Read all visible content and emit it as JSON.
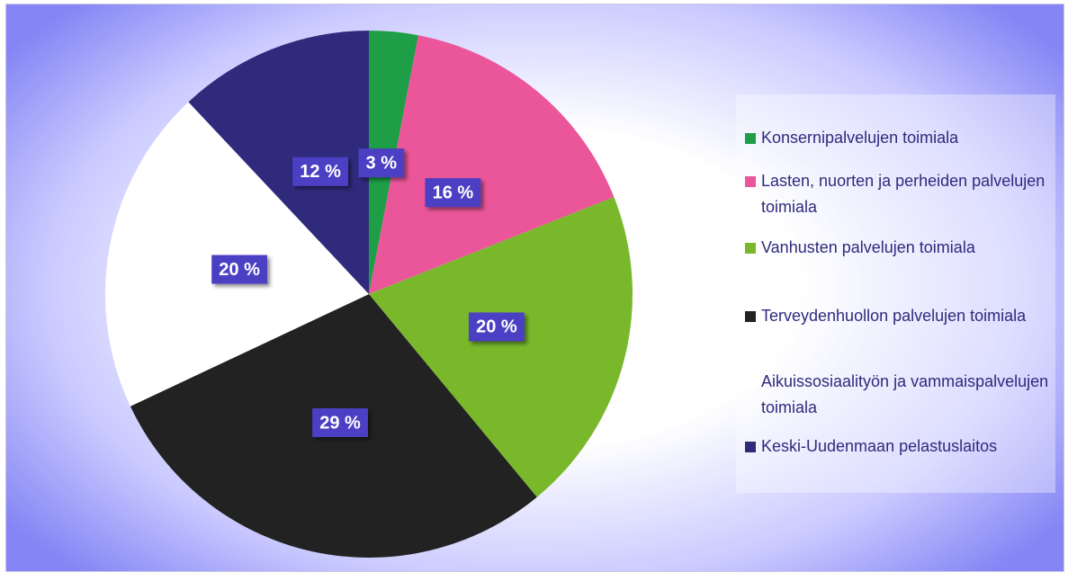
{
  "chart_data": {
    "type": "pie",
    "categories": [
      "Konsernipalvelujen toimiala",
      "Lasten, nuorten ja perheiden palvelujen toimiala",
      "Vanhusten palvelujen toimiala",
      "Terveydenhuollon palvelujen toimiala",
      "Aikuissosiaalityön ja vammaispalvelujen toimiala",
      "Keski-Uudenmaan pelastuslaitos"
    ],
    "values": [
      3,
      16,
      20,
      29,
      20,
      12
    ],
    "value_labels": [
      "3 %",
      "16 %",
      "20 %",
      "29 %",
      "20 %",
      "12 %"
    ],
    "colors": [
      "#1e9e46",
      "#ea5699",
      "#79b82b",
      "#222222",
      "#ffffff",
      "#2f2a7c"
    ],
    "legend": "right"
  }
}
